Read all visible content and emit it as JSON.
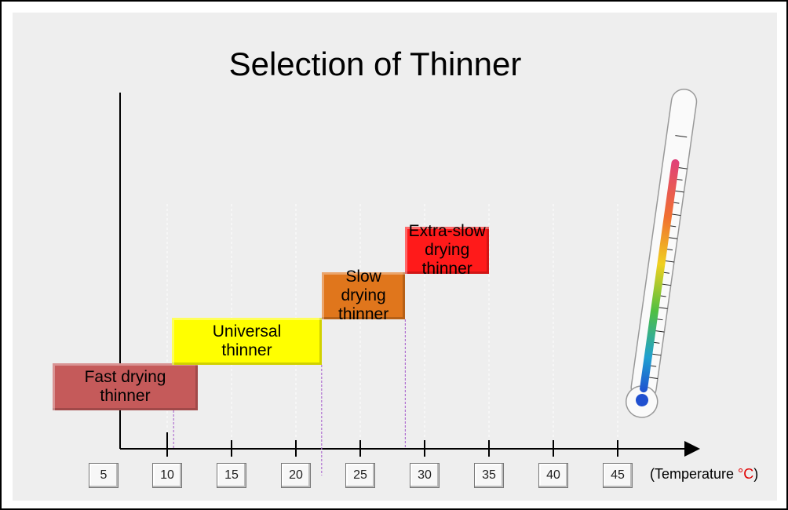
{
  "title": "Selection of Thinner",
  "x_axis": {
    "ticks": [
      "5",
      "10",
      "15",
      "20",
      "25",
      "30",
      "35",
      "40",
      "45"
    ],
    "unit_prefix": "(Temperature ",
    "unit_symbol": "°C",
    "unit_suffix": ")"
  },
  "bands": [
    {
      "line1": "Fast drying",
      "line2": "thinner",
      "color": "#c55a5a",
      "start": 5,
      "end": 10.5
    },
    {
      "line1": "Universal",
      "line2": "thinner",
      "color": "#ffff00",
      "start": 10.5,
      "end": 22
    },
    {
      "line1": "Slow drying",
      "line2": "thinner",
      "color": "#e0761c",
      "start": 22,
      "end": 28.5
    },
    {
      "line1": "Extra-slow",
      "line2": "drying thinner",
      "color": "#ff1a1a",
      "start": 28.5,
      "end": 35
    }
  ],
  "colors": {
    "unit_symbol": "#e00000",
    "divider": "#b070d0"
  },
  "icons": {
    "thermometer": "thermometer-icon"
  }
}
